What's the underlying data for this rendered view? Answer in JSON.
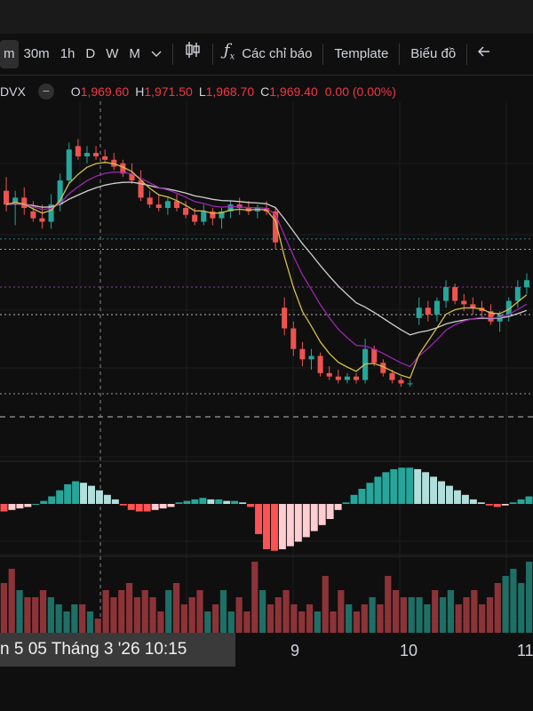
{
  "toolbar": {
    "items": [
      "m",
      "30m",
      "1h",
      "D",
      "W",
      "M"
    ],
    "active_index": 0,
    "indicators_label": "Các chỉ báo",
    "template_label": "Template",
    "chart_label": "Biểu đồ"
  },
  "legend": {
    "symbol": "DVX",
    "collapse_glyph": "−",
    "o_label": "O",
    "o_value": "1,969.60",
    "h_label": "H",
    "h_value": "1,971.50",
    "l_label": "L",
    "l_value": "1,968.70",
    "c_label": "C",
    "c_value": "1,969.40",
    "change": "0.00 (0.00%)",
    "change_color": "#f23645"
  },
  "crosshair_time_label": "n 5 05 Tháng 3 '26   10:15",
  "colors": {
    "up": "#26a69a",
    "down": "#ef5350",
    "hist_up_strong": "#26a69a",
    "hist_up_weak": "#b2dfdb",
    "hist_down_strong": "#ff5252",
    "hist_down_weak": "#ffcdd2",
    "ma_slow": "#d0d0d0",
    "ma_mid": "#9c27b0",
    "ma_fast": "#d4c04a"
  },
  "chart_data": {
    "type": "candlestick",
    "x_tick_labels": [
      "9",
      "10",
      "11"
    ],
    "price_lines": [
      1971.6,
      1971.3,
      1970.2,
      1969.4,
      1967.1
    ],
    "candles": [
      [
        1973.0,
        1973.4,
        1972.4,
        1972.6
      ],
      [
        1972.6,
        1973.0,
        1972.0,
        1972.8
      ],
      [
        1972.8,
        1973.1,
        1972.3,
        1972.5
      ],
      [
        1972.4,
        1972.7,
        1972.1,
        1972.2
      ],
      [
        1972.2,
        1972.6,
        1971.9,
        1972.1
      ],
      [
        1972.1,
        1972.9,
        1971.9,
        1972.6
      ],
      [
        1972.6,
        1973.5,
        1972.4,
        1973.3
      ],
      [
        1973.3,
        1974.4,
        1973.2,
        1974.2
      ],
      [
        1974.3,
        1974.5,
        1973.9,
        1974.0
      ],
      [
        1974.0,
        1974.3,
        1973.8,
        1974.1
      ],
      [
        1974.1,
        1974.3,
        1973.9,
        1974.0
      ],
      [
        1974.0,
        1974.2,
        1973.8,
        1973.9
      ],
      [
        1973.9,
        1974.1,
        1973.6,
        1973.7
      ],
      [
        1973.8,
        1973.9,
        1973.4,
        1973.5
      ],
      [
        1973.5,
        1973.8,
        1973.2,
        1973.3
      ],
      [
        1973.3,
        1973.6,
        1972.7,
        1972.8
      ],
      [
        1972.8,
        1973.0,
        1972.5,
        1972.6
      ],
      [
        1972.6,
        1972.9,
        1972.4,
        1972.5
      ],
      [
        1972.5,
        1972.8,
        1972.3,
        1972.7
      ],
      [
        1972.7,
        1972.9,
        1972.4,
        1972.5
      ],
      [
        1972.5,
        1972.7,
        1972.2,
        1972.3
      ],
      [
        1972.3,
        1972.5,
        1972.0,
        1972.1
      ],
      [
        1972.1,
        1972.6,
        1972.0,
        1972.4
      ],
      [
        1972.4,
        1972.5,
        1972.0,
        1972.2
      ],
      [
        1972.2,
        1972.5,
        1971.9,
        1972.4
      ],
      [
        1972.4,
        1972.7,
        1972.2,
        1972.6
      ],
      [
        1972.6,
        1972.8,
        1972.3,
        1972.5
      ],
      [
        1972.5,
        1972.7,
        1972.3,
        1972.4
      ],
      [
        1972.4,
        1972.6,
        1972.2,
        1972.5
      ],
      [
        1972.5,
        1972.7,
        1972.3,
        1972.4
      ],
      [
        1972.4,
        1972.5,
        1971.3,
        1971.5
      ],
      [
        1969.6,
        1969.9,
        1968.8,
        1969.0
      ],
      [
        1969.0,
        1969.2,
        1968.2,
        1968.4
      ],
      [
        1968.4,
        1968.6,
        1967.9,
        1968.1
      ],
      [
        1968.1,
        1968.4,
        1967.8,
        1968.2
      ],
      [
        1968.2,
        1968.3,
        1967.6,
        1967.7
      ],
      [
        1967.7,
        1967.9,
        1967.5,
        1967.6
      ],
      [
        1967.6,
        1967.8,
        1967.4,
        1967.5
      ],
      [
        1967.5,
        1967.7,
        1967.4,
        1967.6
      ],
      [
        1967.6,
        1967.7,
        1967.4,
        1967.5
      ],
      [
        1967.5,
        1968.7,
        1967.4,
        1968.4
      ],
      [
        1968.4,
        1968.5,
        1967.9,
        1968.0
      ],
      [
        1968.0,
        1968.1,
        1967.6,
        1967.7
      ],
      [
        1967.7,
        1967.8,
        1967.4,
        1967.5
      ],
      [
        1967.5,
        1967.6,
        1967.3,
        1967.4
      ],
      [
        1967.4,
        1967.5,
        1967.3,
        1967.4
      ],
      [
        1969.3,
        1969.9,
        1969.1,
        1969.6
      ],
      [
        1969.6,
        1969.8,
        1969.2,
        1969.4
      ],
      [
        1969.4,
        1969.9,
        1969.2,
        1969.8
      ],
      [
        1969.8,
        1970.4,
        1969.6,
        1970.2
      ],
      [
        1970.2,
        1970.3,
        1969.7,
        1969.8
      ],
      [
        1969.8,
        1970.0,
        1969.5,
        1969.7
      ],
      [
        1969.7,
        1969.9,
        1969.4,
        1969.6
      ],
      [
        1969.6,
        1969.8,
        1969.3,
        1969.5
      ],
      [
        1969.5,
        1969.7,
        1969.1,
        1969.2
      ],
      [
        1969.2,
        1969.5,
        1968.9,
        1969.4
      ],
      [
        1969.4,
        1969.9,
        1969.2,
        1969.8
      ],
      [
        1969.8,
        1970.4,
        1969.6,
        1970.2
      ],
      [
        1970.2,
        1970.6,
        1970.0,
        1970.4
      ]
    ],
    "histogram": [
      -0.5,
      -0.4,
      -0.3,
      -0.2,
      0.0,
      0.2,
      0.5,
      0.9,
      1.3,
      1.5,
      1.4,
      1.2,
      0.9,
      0.6,
      0.3,
      -0.1,
      -0.4,
      -0.5,
      -0.5,
      -0.4,
      -0.3,
      -0.2,
      0.1,
      0.2,
      0.3,
      0.4,
      0.3,
      0.3,
      0.2,
      0.2,
      0.1,
      -0.2,
      -2.0,
      -3.0,
      -3.1,
      -3.0,
      -2.8,
      -2.5,
      -2.2,
      -1.8,
      -1.4,
      -1.0,
      -0.4,
      0.1,
      0.6,
      1.0,
      1.4,
      1.8,
      2.1,
      2.3,
      2.4,
      2.4,
      2.3,
      2.1,
      1.8,
      1.5,
      1.2,
      0.9,
      0.6,
      0.3,
      0.1,
      -0.1,
      -0.2,
      -0.1,
      0.1,
      0.3,
      0.5
    ],
    "volume": [
      0.7,
      0.9,
      0.6,
      0.5,
      0.5,
      0.6,
      0.5,
      0.4,
      0.3,
      0.4,
      0.4,
      0.3,
      0.2,
      0.6,
      0.5,
      0.6,
      0.7,
      0.5,
      0.6,
      0.5,
      0.3,
      0.6,
      0.7,
      0.4,
      0.5,
      0.6,
      0.3,
      0.4,
      0.6,
      0.3,
      0.5,
      0.3,
      1.0,
      0.6,
      0.4,
      0.5,
      0.6,
      0.4,
      0.3,
      0.4,
      0.3,
      0.8,
      0.3,
      0.6,
      0.4,
      0.3,
      0.4,
      0.5,
      0.4,
      0.8,
      0.6,
      0.5,
      0.5,
      0.5,
      0.4,
      0.6,
      0.5,
      0.6,
      0.4,
      0.5,
      0.6,
      0.4,
      0.5,
      0.7,
      0.8,
      0.9,
      0.7,
      1.0
    ]
  }
}
